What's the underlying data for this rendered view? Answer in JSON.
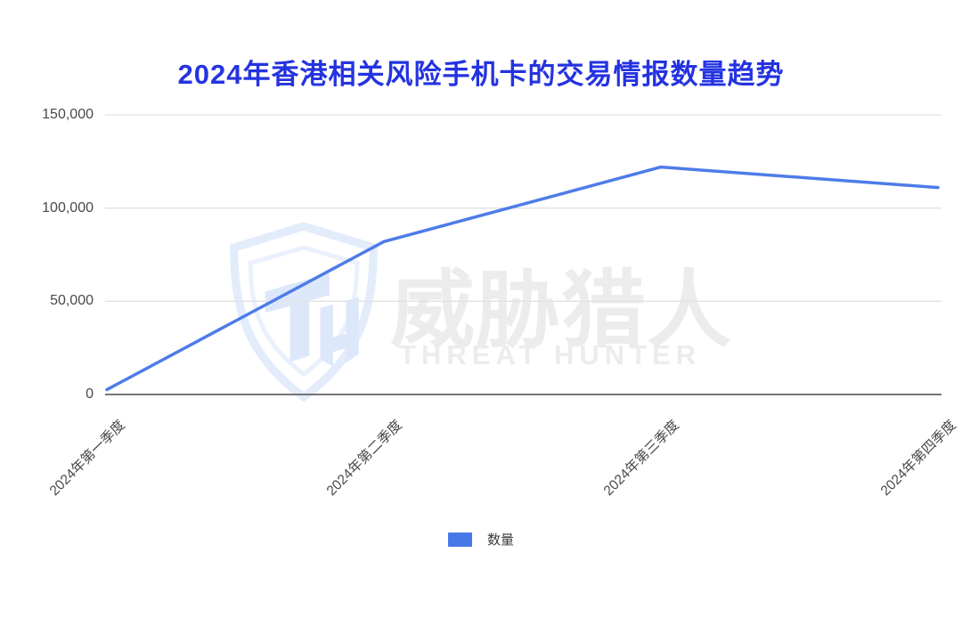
{
  "title": {
    "text": "2024年香港相关风险手机卡的交易情报数量趋势",
    "color": "#2433e0"
  },
  "legend": {
    "label": "数量",
    "swatch_color": "#4678e8"
  },
  "watermark": {
    "logo_icon": "threat-hunter-shield-logo",
    "zh_text": "威胁猎人",
    "en_text": "THREAT HUNTER",
    "shield_color": "#e3ecfa",
    "text_color": "#ececec"
  },
  "axes": {
    "grid_color": "#e2e2e2",
    "baseline_color": "#757575",
    "tick_label_color": "#494949"
  },
  "chart_data": {
    "type": "line",
    "title": "2024年香港相关风险手机卡的交易情报数量趋势",
    "categories": [
      "2024年第一季度",
      "2024年第二季度",
      "2024年第三季度",
      "2024年第四季度"
    ],
    "series": [
      {
        "name": "数量",
        "values": [
          2600,
          82000,
          122000,
          111000
        ]
      }
    ],
    "ylim": [
      0,
      150000
    ],
    "yticks": [
      0,
      50000,
      100000,
      150000
    ],
    "ytick_labels": [
      "0",
      "50,000",
      "100,000",
      "150,000"
    ],
    "xlabel": "",
    "ylabel": "",
    "grid": "horizontal",
    "legend_position": "bottom",
    "line_color": "#4e7ce8"
  }
}
